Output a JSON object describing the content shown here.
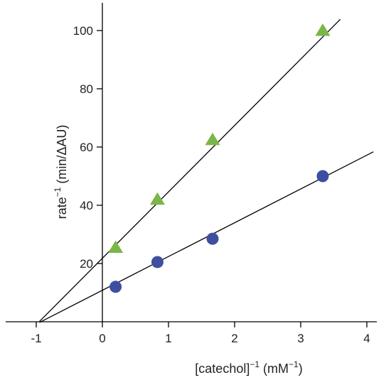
{
  "chart_data": {
    "type": "scatter",
    "xlabel": "[catechol]",
    "xlabel_exp": "−1",
    "xlabel_unit_open": " (mM",
    "xlabel_unit_exp": "−1",
    "xlabel_unit_close": ")",
    "ylabel": "rate",
    "ylabel_exp": "−1",
    "ylabel_unit": " (min/ΔAU)",
    "xlim": [
      -1.2,
      4.1
    ],
    "ylim": [
      0,
      105
    ],
    "xticks": [
      -1,
      0,
      1,
      2,
      3,
      4
    ],
    "xtick_labels": [
      "-1",
      "0",
      "1",
      "2",
      "3",
      "4"
    ],
    "yticks": [
      20,
      40,
      60,
      80,
      100
    ],
    "ytick_labels": [
      "20",
      "40",
      "60",
      "80",
      "100"
    ],
    "grid": false,
    "series": [
      {
        "marker": "triangle",
        "color": "#7ab648",
        "x": [
          0.2,
          0.833,
          1.667,
          3.333
        ],
        "y": [
          25.5,
          42,
          62.5,
          100
        ],
        "fit": {
          "slope": 22.8,
          "intercept": 21.8,
          "x_range": [
            -0.95,
            3.6
          ]
        }
      },
      {
        "marker": "circle",
        "color": "#3e4fa0",
        "x": [
          0.2,
          0.833,
          1.667,
          3.333
        ],
        "y": [
          12,
          20.5,
          28.5,
          50
        ],
        "fit": {
          "slope": 11.6,
          "intercept": 10.8,
          "x_range": [
            -0.95,
            4.1
          ]
        }
      }
    ]
  }
}
